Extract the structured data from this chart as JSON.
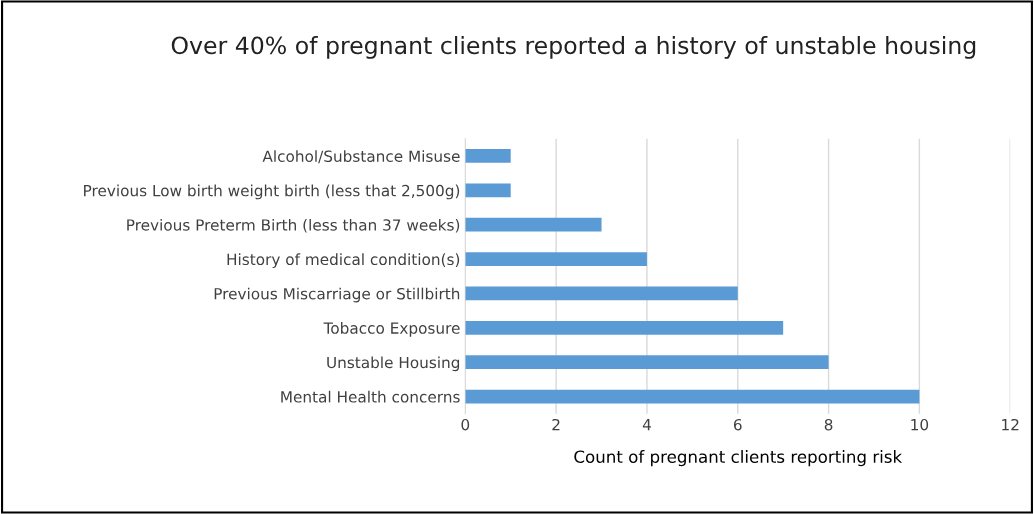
{
  "chart_data": {
    "type": "bar",
    "orientation": "horizontal",
    "title": "Over 40% of pregnant clients reported a history of unstable housing",
    "xlabel": "Count of pregnant clients reporting risk",
    "categories": [
      "Alcohol/Substance Misuse",
      "Previous Low birth weight birth (less that 2,500g)",
      "Previous Preterm Birth (less than 37 weeks)",
      "History of medical condition(s)",
      "Previous Miscarriage or Stillbirth",
      "Tobacco Exposure",
      "Unstable Housing",
      "Mental Health concerns"
    ],
    "values": [
      1,
      1,
      3,
      4,
      6,
      7,
      8,
      10
    ],
    "color": "#5b9bd5",
    "xlim": [
      0,
      12
    ],
    "xticks": [
      0,
      2,
      4,
      6,
      8,
      10,
      12
    ],
    "grid": "x"
  }
}
